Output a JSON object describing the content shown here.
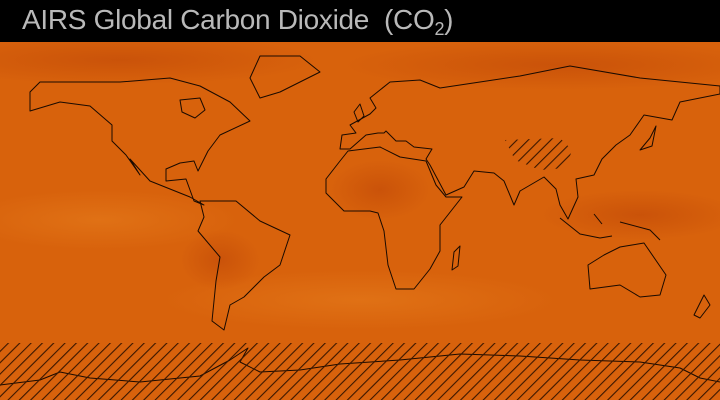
{
  "title": {
    "text": "AIRS Global Carbon Dioxide",
    "formula_main": "(CO",
    "formula_sub": "2",
    "formula_end": ")"
  },
  "map": {
    "projection": "equirectangular",
    "base_color": "#d8620c",
    "high_color": "#c24a08",
    "low_color": "#e2741a",
    "coastline_color": "#1a0a00",
    "hatched_regions": [
      "antarctica-band",
      "tibetan-plateau"
    ]
  }
}
